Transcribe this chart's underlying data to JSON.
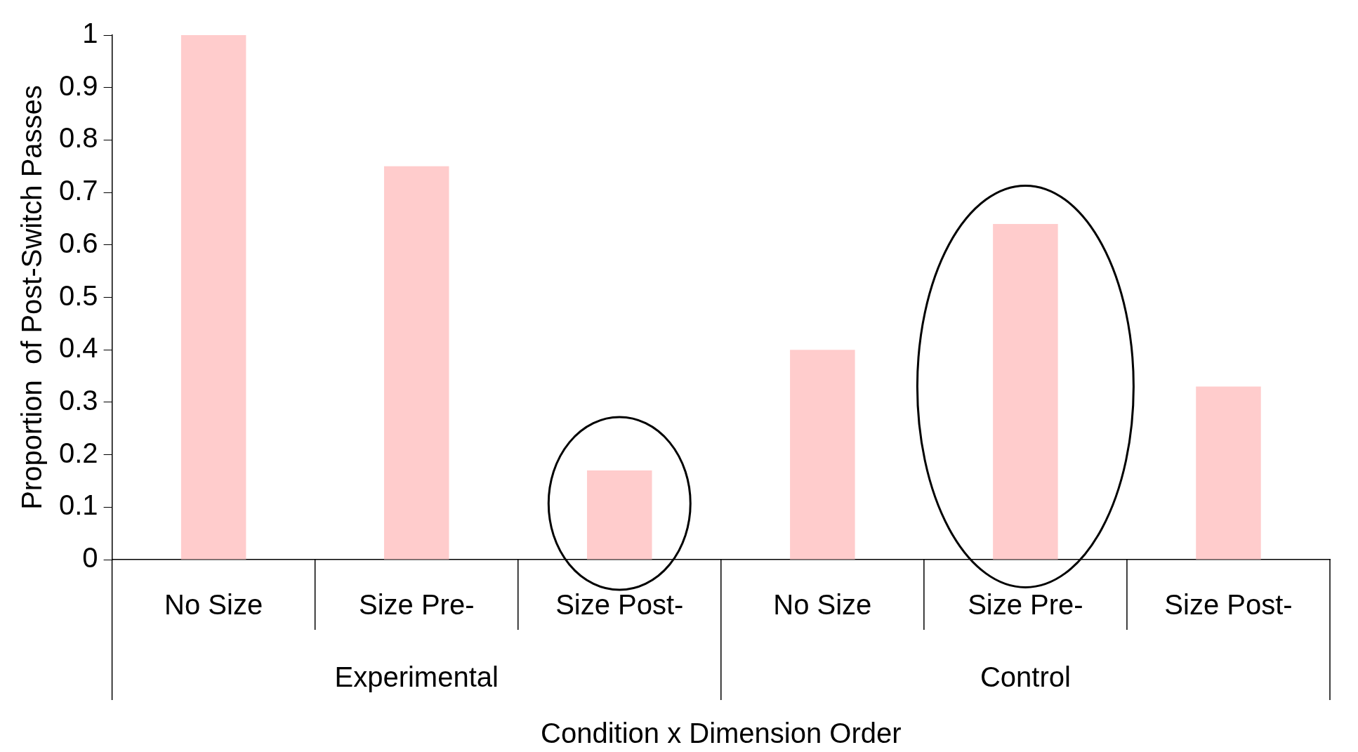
{
  "chart_data": {
    "type": "bar",
    "xlabel": "Condition x Dimension Order",
    "ylabel": "Proportion  of Post-Switch Passes",
    "categories": [
      "No Size",
      "Size Pre-",
      "Size Post-",
      "No Size",
      "Size Pre-",
      "Size Post-"
    ],
    "values": [
      1,
      0.75,
      0.17,
      0.4,
      0.64,
      0.33
    ],
    "color": "#ffcccc",
    "ylim": [
      0,
      1
    ],
    "yticks": [
      0,
      0.1,
      0.2,
      0.3,
      0.4,
      0.5,
      0.6,
      0.7,
      0.8,
      0.9,
      1
    ],
    "annotations": [
      "Experimental",
      "Control"
    ],
    "grid": false,
    "legend": false
  }
}
